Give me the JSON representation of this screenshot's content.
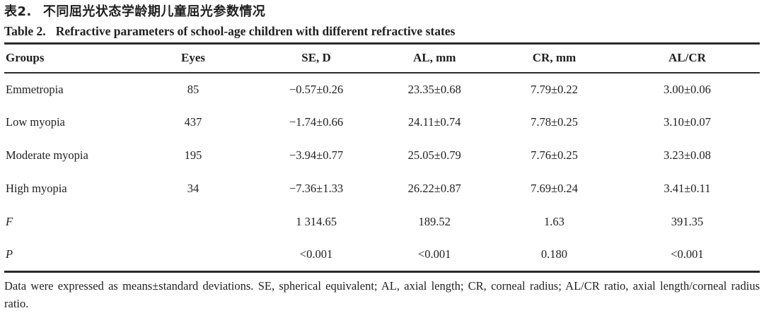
{
  "colors": {
    "text": "#1f1f1f",
    "rule": "#2b2b2b",
    "background": "#ffffff"
  },
  "titles": {
    "zh_label": "表2.",
    "zh_text": "不同屈光状态学龄期儿童屈光参数情况",
    "en_label": "Table 2.",
    "en_text": "Refractive parameters of school-age children with different refractive states"
  },
  "table": {
    "columns": [
      "Groups",
      "Eyes",
      "SE, D",
      "AL, mm",
      "CR, mm",
      "AL/CR"
    ],
    "rows": [
      {
        "cells": [
          "Emmetropia",
          "85",
          "−0.57±0.26",
          "23.35±0.68",
          "7.79±0.22",
          "3.00±0.06"
        ]
      },
      {
        "cells": [
          "Low myopia",
          "437",
          "−1.74±0.66",
          "24.11±0.74",
          "7.78±0.25",
          "3.10±0.07"
        ]
      },
      {
        "cells": [
          "Moderate myopia",
          "195",
          "−3.94±0.77",
          "25.05±0.79",
          "7.76±0.25",
          "3.23±0.08"
        ]
      },
      {
        "cells": [
          "High myopia",
          "34",
          "−7.36±1.33",
          "26.22±0.87",
          "7.69±0.24",
          "3.41±0.11"
        ]
      },
      {
        "cells": [
          "F",
          "",
          "1 314.65",
          "189.52",
          "1.63",
          "391.35"
        ],
        "italic_label": true
      },
      {
        "cells": [
          "P",
          "",
          "<0.001",
          "<0.001",
          "0.180",
          "<0.001"
        ],
        "italic_label": true
      }
    ],
    "footnote": "Data were expressed as means±standard deviations. SE, spherical equivalent; AL, axial length; CR, corneal radius; AL/CR ratio, axial length/corneal radius ratio."
  }
}
